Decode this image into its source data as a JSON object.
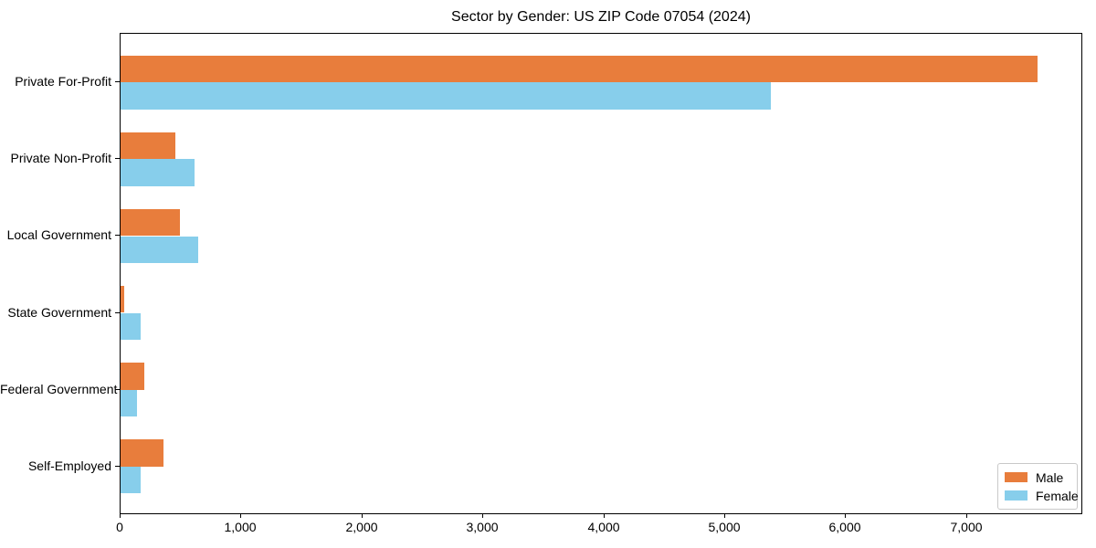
{
  "title": "Sector by Gender: US ZIP Code 07054 (2024)",
  "chart_data": {
    "type": "bar",
    "orientation": "horizontal",
    "title": "Sector by Gender: US ZIP Code 07054 (2024)",
    "categories": [
      "Private For-Profit",
      "Private Non-Profit",
      "Local Government",
      "State Government",
      "Federal Government",
      "Self-Employed"
    ],
    "series": [
      {
        "name": "Male",
        "color": "#e87d3c",
        "values": [
          7580,
          450,
          490,
          28,
          196,
          353
        ]
      },
      {
        "name": "Female",
        "color": "#87ceeb",
        "values": [
          5380,
          615,
          640,
          165,
          136,
          169
        ]
      }
    ],
    "xlabel": "",
    "ylabel": "",
    "xlim": [
      0,
      7960
    ],
    "xticks": [
      0,
      1000,
      2000,
      3000,
      4000,
      5000,
      6000,
      7000
    ],
    "xtick_labels": [
      "0",
      "1,000",
      "2,000",
      "3,000",
      "4,000",
      "5,000",
      "6,000",
      "7,000"
    ],
    "grid": false,
    "legend": {
      "position": "lower-right",
      "entries": [
        {
          "label": "Male",
          "color": "#e87d3c"
        },
        {
          "label": "Female",
          "color": "#87ceeb"
        }
      ]
    }
  }
}
